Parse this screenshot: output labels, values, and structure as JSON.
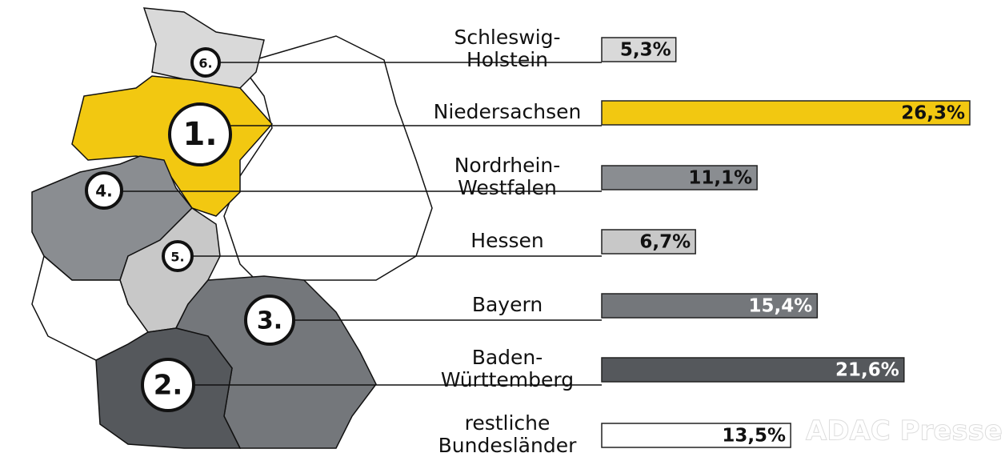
{
  "chart_data": {
    "type": "bar",
    "orientation": "horizontal",
    "categories": [
      "Schleswig-\nHolstein",
      "Niedersachsen",
      "Nordrhein-\nWestfalen",
      "Hessen",
      "Bayern",
      "Baden-\nWürttemberg",
      "restliche\nBundesländer"
    ],
    "values": [
      5.3,
      26.3,
      11.1,
      6.7,
      15.4,
      21.6,
      13.5
    ],
    "value_labels": [
      "5,3%",
      "26,3%",
      "11,1%",
      "6,7%",
      "15,4%",
      "21,6%",
      "13,5%"
    ],
    "colors": [
      "#d9d9d9",
      "#f2c811",
      "#8a8d91",
      "#c8c8c8",
      "#74777b",
      "#55585c",
      "#ffffff"
    ],
    "rank_labels": [
      "6.",
      "1.",
      "4.",
      "5.",
      "3.",
      "2.",
      null
    ],
    "watermark": "ADAC Presse"
  }
}
